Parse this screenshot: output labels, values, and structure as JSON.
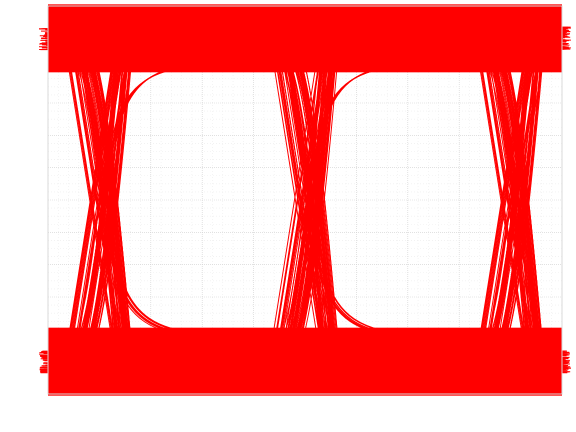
{
  "chart_data": {
    "type": "line",
    "title": "",
    "xlabel": "",
    "ylabel": "",
    "xlim": [
      0,
      2
    ],
    "ylim": [
      -1.2,
      1.2
    ],
    "grid": true,
    "legend": "none",
    "color": "#ff0000",
    "series": [
      {
        "values": [
          [
            0.0,
            1.0
          ],
          [
            0.1,
            1.0
          ],
          [
            0.3,
            -1.0
          ],
          [
            0.9,
            -1.0
          ],
          [
            1.1,
            1.0
          ],
          [
            1.7,
            1.0
          ],
          [
            1.9,
            -1.0
          ],
          [
            2.0,
            -1.0
          ]
        ]
      },
      {
        "values": [
          [
            0.0,
            -1.0
          ],
          [
            0.1,
            -1.0
          ],
          [
            0.3,
            1.0
          ],
          [
            0.9,
            1.0
          ],
          [
            1.1,
            -1.0
          ],
          [
            1.7,
            -1.0
          ],
          [
            1.9,
            1.0
          ],
          [
            2.0,
            1.0
          ]
        ]
      },
      {
        "values": [
          [
            0.0,
            1.0
          ],
          [
            0.1,
            1.0
          ],
          [
            0.3,
            1.0
          ],
          [
            0.9,
            1.0
          ],
          [
            1.1,
            1.0
          ],
          [
            1.7,
            1.0
          ],
          [
            1.9,
            1.0
          ],
          [
            2.0,
            1.0
          ]
        ]
      },
      {
        "values": [
          [
            0.0,
            -1.0
          ],
          [
            0.1,
            -1.0
          ],
          [
            0.3,
            -1.0
          ],
          [
            0.9,
            -1.0
          ],
          [
            1.1,
            -1.0
          ],
          [
            1.7,
            -1.0
          ],
          [
            1.9,
            -1.0
          ],
          [
            2.0,
            -1.0
          ]
        ]
      }
    ]
  }
}
